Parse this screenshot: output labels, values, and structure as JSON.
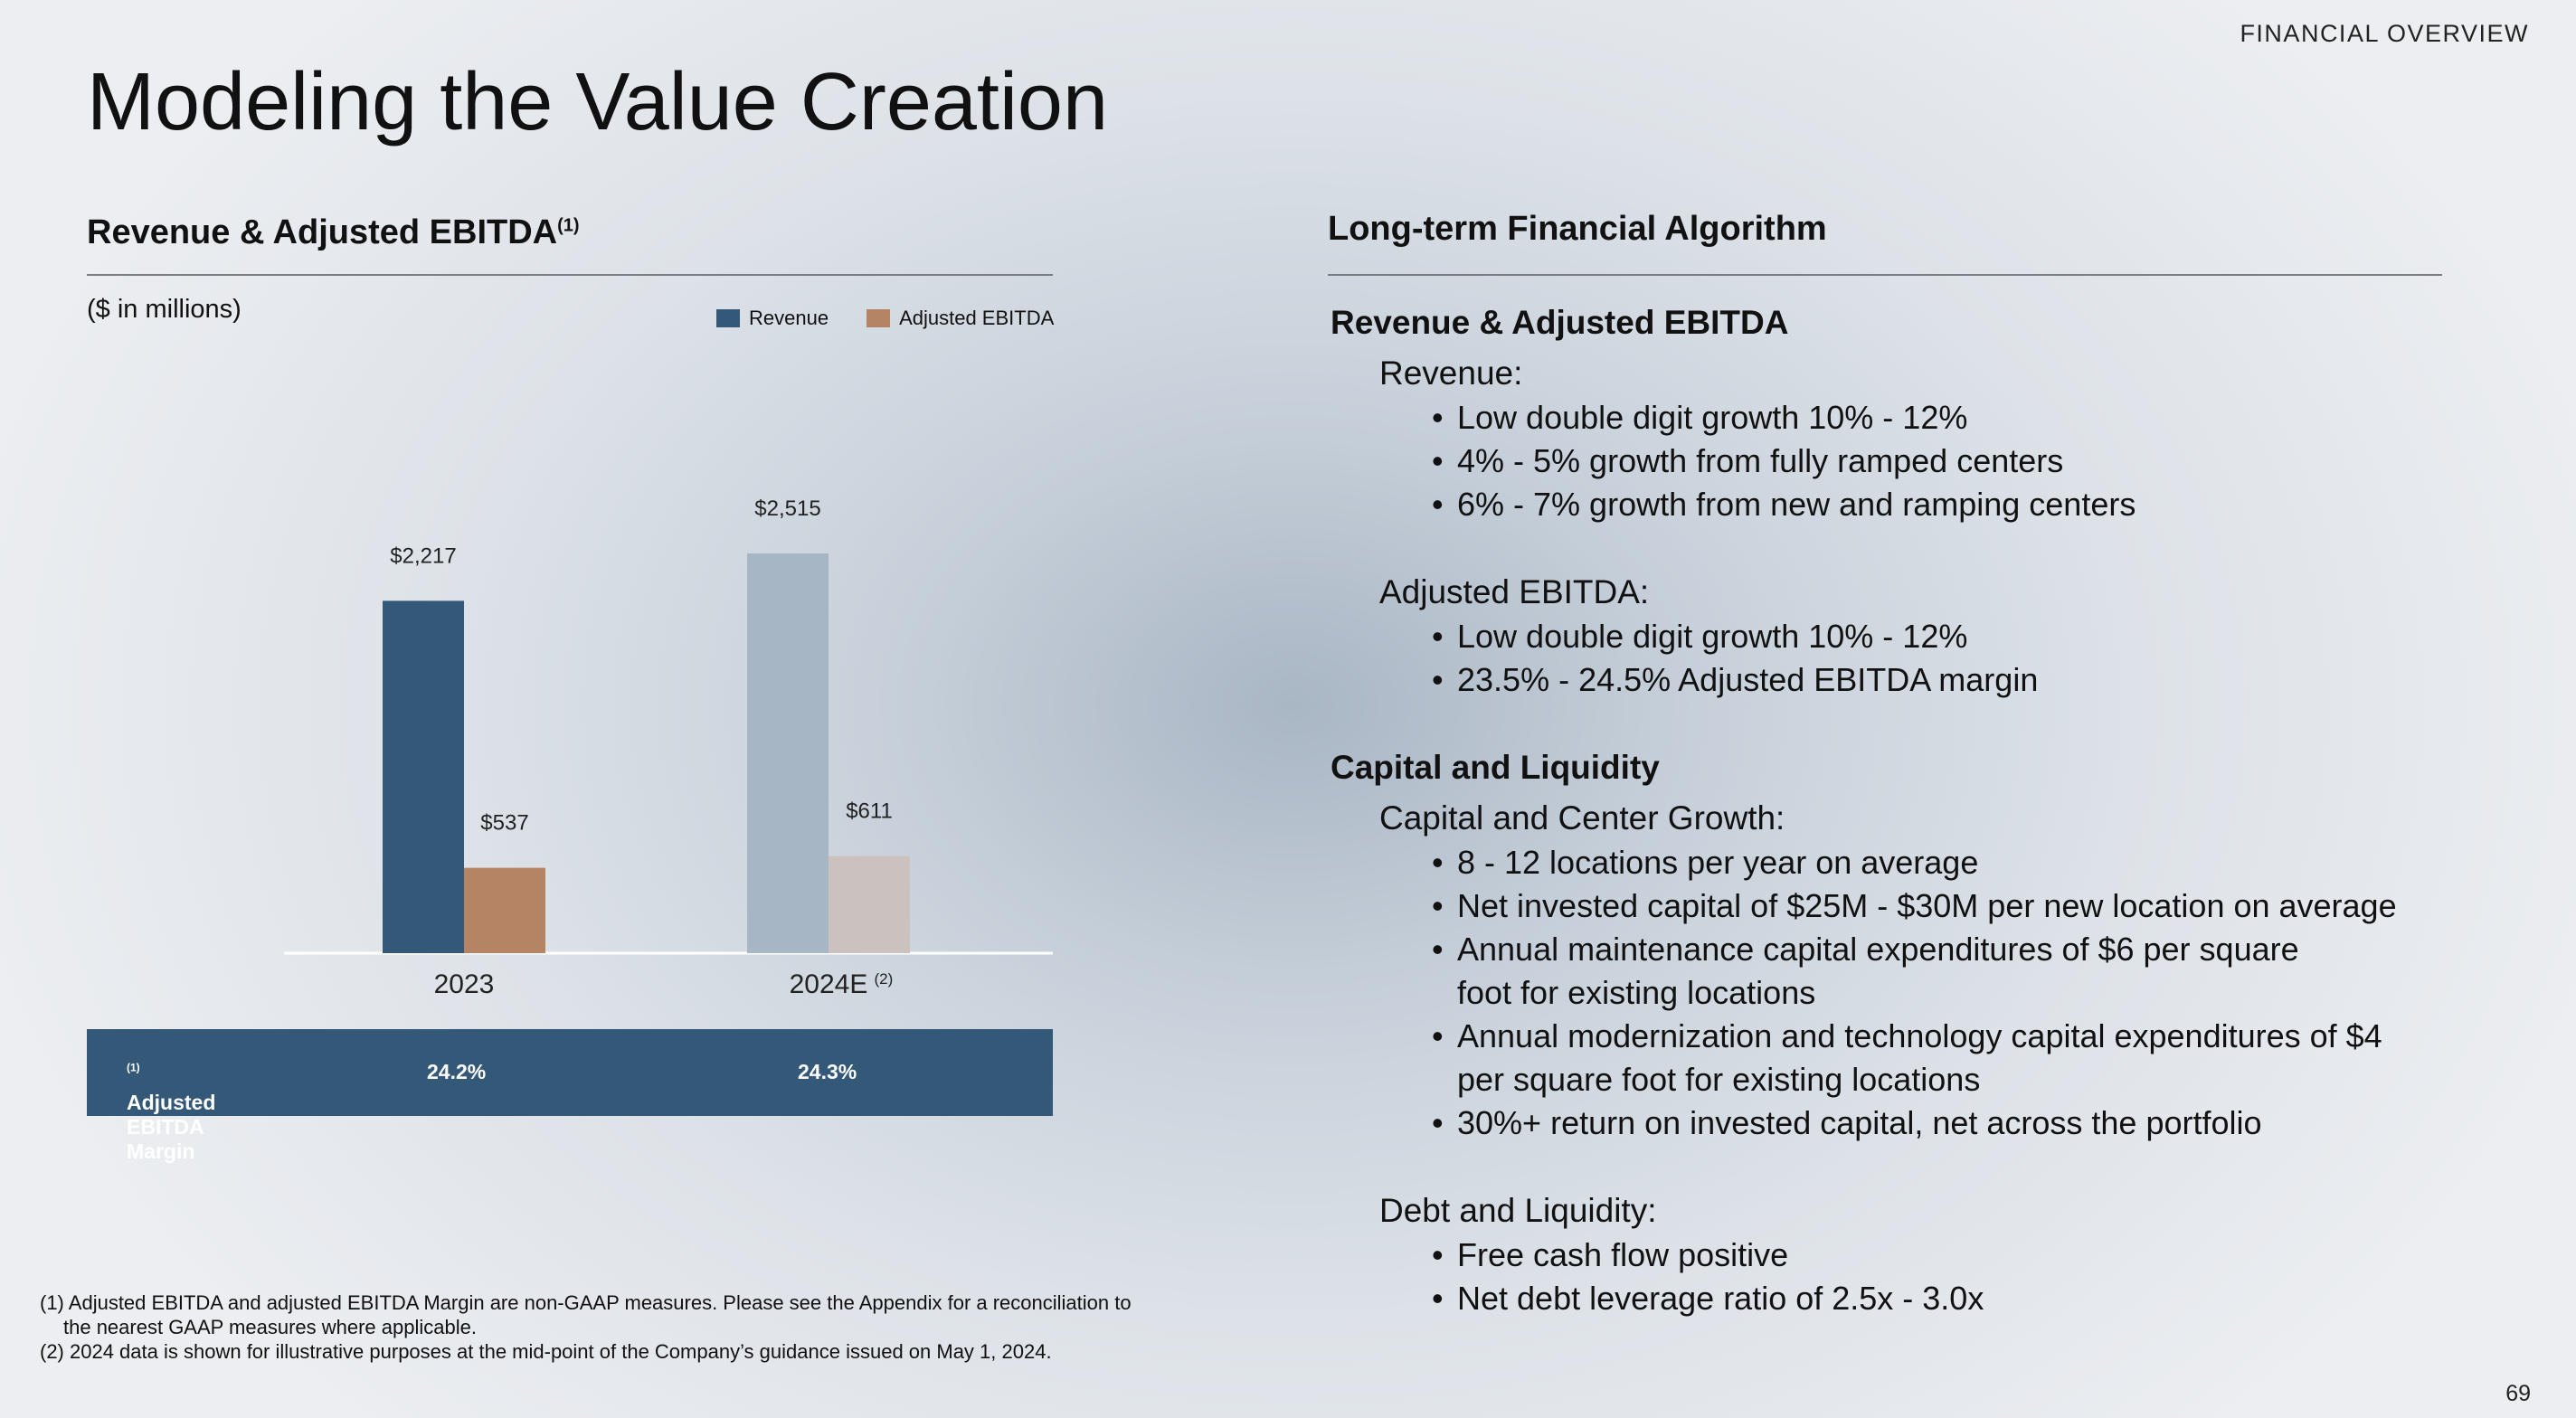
{
  "header": {
    "section_label": "FINANCIAL OVERVIEW",
    "title": "Modeling the Value Creation",
    "page_number": "69"
  },
  "left": {
    "heading": "Revenue & Adjusted EBITDA",
    "heading_sup": "(1)",
    "units": "($ in millions)"
  },
  "chart_data": {
    "type": "bar",
    "title": "Revenue & Adjusted EBITDA",
    "categories": [
      "2023",
      "2024E"
    ],
    "category_notes": [
      "",
      "(2)"
    ],
    "series": [
      {
        "name": "Revenue",
        "values": [
          2217,
          2515
        ],
        "labels": [
          "$2,217",
          "$2,515"
        ],
        "colors": [
          "#345877",
          "#a6b6c5"
        ]
      },
      {
        "name": "Adjusted EBITDA",
        "values": [
          537,
          611
        ],
        "labels": [
          "$537",
          "$611"
        ],
        "colors": [
          "#b48465",
          "#cbc2bf"
        ]
      }
    ],
    "legend": [
      {
        "label": "Revenue",
        "color": "#345877"
      },
      {
        "label": "Adjusted EBITDA",
        "color": "#b48465"
      }
    ],
    "ylim": [
      0,
      2515
    ],
    "grid": false,
    "legend_position": "top-right"
  },
  "margin_row": {
    "label": "Adjusted EBITDA Margin",
    "label_sup": "(1)",
    "values": [
      "24.2%",
      "24.3%"
    ]
  },
  "footnotes": {
    "line1": "(1) Adjusted EBITDA and adjusted EBITDA Margin are non-GAAP measures. Please see the Appendix for a reconciliation to",
    "line1b": "the nearest GAAP measures where applicable.",
    "line2": "(2) 2024 data is shown for illustrative purposes at the mid-point of the Company’s guidance issued on May 1, 2024."
  },
  "algorithm": {
    "heading": "Long-term Financial Algorithm",
    "revenue_ebitda": {
      "title": "Revenue & Adjusted EBITDA",
      "revenue": {
        "title": "Revenue:",
        "items": [
          "Low double digit growth 10% - 12%",
          "4% - 5% growth from fully ramped centers",
          "6% - 7% growth from new and ramping centers"
        ]
      },
      "ebitda": {
        "title": "Adjusted EBITDA:",
        "items": [
          "Low double digit growth 10% - 12%",
          "23.5% - 24.5% Adjusted EBITDA margin"
        ]
      }
    },
    "capital": {
      "title": "Capital and Liquidity",
      "center_growth": {
        "title": "Capital and Center Growth:",
        "items": [
          "8 - 12 locations per year on average",
          "Net invested capital of $25M - $30M per new location on average",
          "Annual maintenance capital expenditures of $6 per square foot for existing locations",
          "Annual modernization and technology capital expenditures of $4 per square foot for existing locations",
          "30%+ return on invested capital, net across the portfolio"
        ]
      },
      "debt": {
        "title": "Debt and Liquidity:",
        "items": [
          "Free cash flow positive",
          "Net debt leverage ratio of 2.5x - 3.0x"
        ]
      }
    }
  }
}
